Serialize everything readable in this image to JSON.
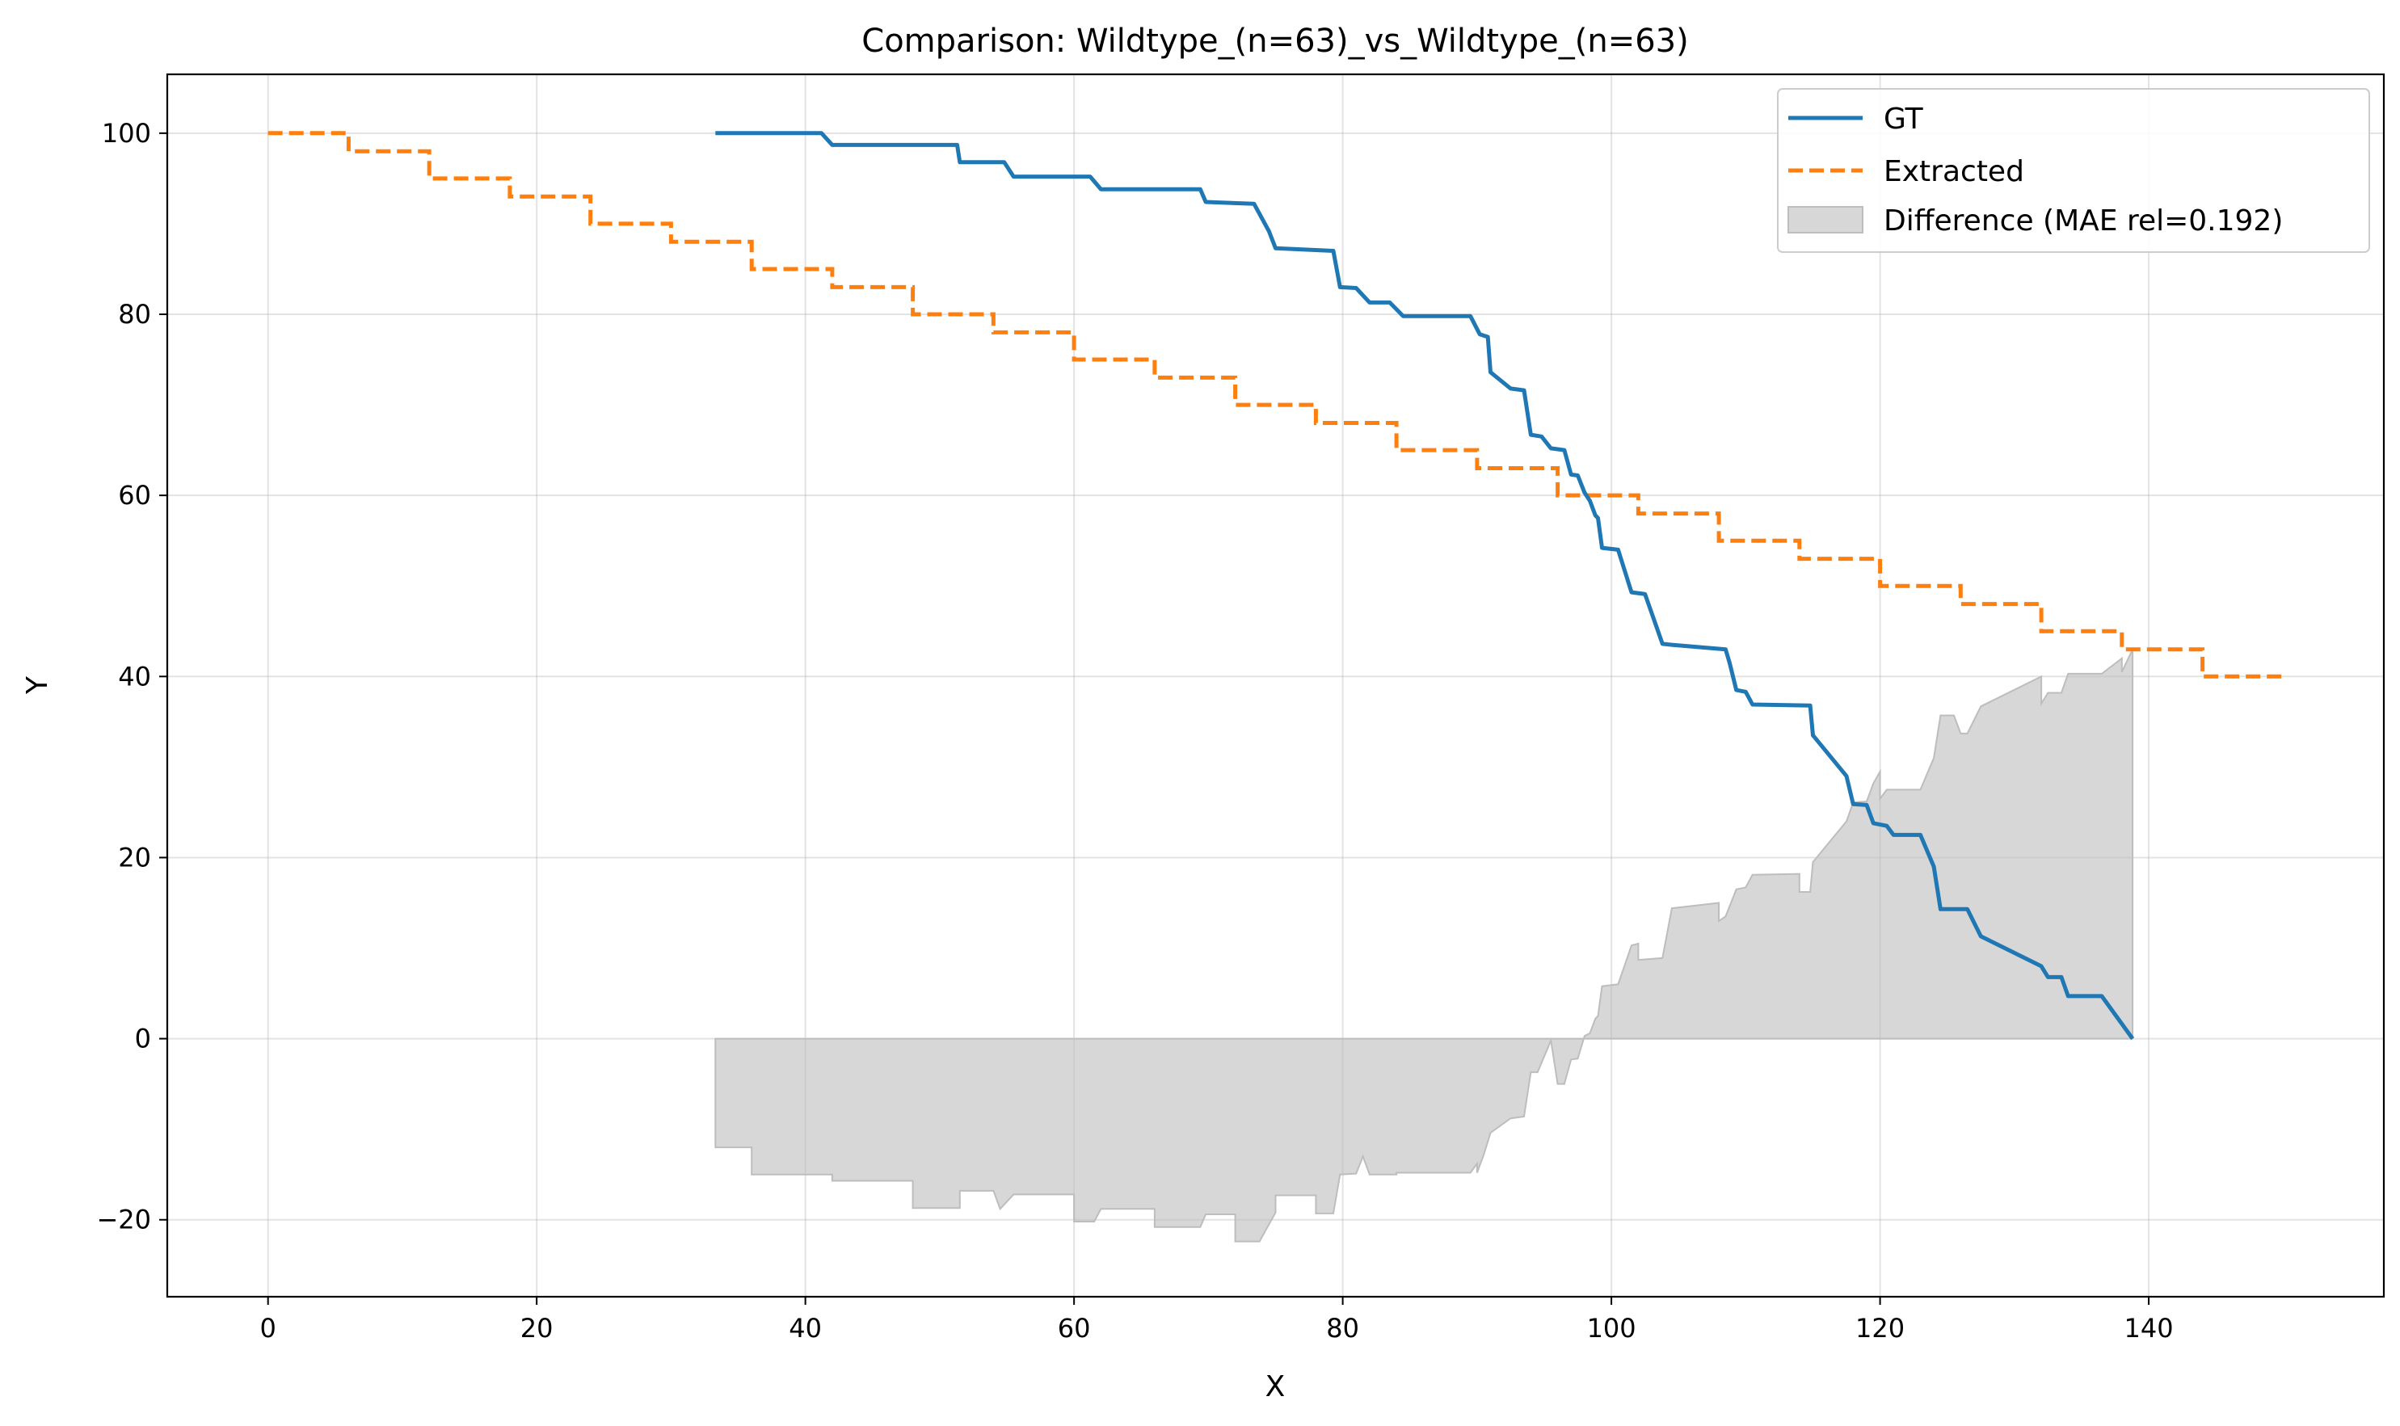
{
  "chart_data": {
    "type": "line",
    "title": "Comparison: Wildtype_(n=63)_vs_Wildtype_(n=63)",
    "xlabel": "X",
    "ylabel": "Y",
    "xlim": [
      -7.5,
      157.5
    ],
    "ylim": [
      -28.5,
      106.5
    ],
    "xticks": [
      0,
      20,
      40,
      60,
      80,
      100,
      120,
      140
    ],
    "yticks": [
      -20,
      0,
      20,
      40,
      60,
      80,
      100
    ],
    "xtick_labels": [
      "0",
      "20",
      "40",
      "60",
      "80",
      "100",
      "120",
      "140"
    ],
    "ytick_labels": [
      "−20",
      "0",
      "20",
      "40",
      "60",
      "80",
      "100"
    ],
    "grid": true,
    "legend_position": "top-right",
    "colors": {
      "gt": "#1f77b4",
      "extracted": "#ff7f0e",
      "difference": "#bdbdbd"
    },
    "series": [
      {
        "name": "GT",
        "style": "solid",
        "x": [
          33.3,
          41.2,
          42.0,
          51.3,
          51.5,
          54.8,
          55.5,
          61.2,
          62.0,
          69.4,
          69.8,
          73.4,
          74.5,
          75.0,
          79.3,
          79.8,
          81.0,
          82.0,
          83.5,
          84.5,
          89.5,
          90.2,
          90.8,
          91.0,
          92.5,
          93.5,
          94.0,
          94.8,
          95.5,
          96.5,
          97.0,
          97.5,
          98.0,
          98.4,
          98.8,
          99.0,
          99.3,
          100.5,
          101.5,
          102.5,
          103.8,
          104.5,
          108.5,
          108.8,
          109.3,
          110.0,
          110.5,
          114.8,
          115.0,
          117.5,
          118.0,
          119.0,
          119.5,
          120.5,
          121.0,
          123.0,
          124.0,
          124.5,
          126.5,
          127.5,
          132.0,
          132.5,
          133.5,
          134.0,
          136.5,
          138.8
        ],
        "y": [
          100.0,
          100.0,
          98.7,
          98.7,
          96.8,
          96.8,
          95.2,
          95.2,
          93.8,
          93.8,
          92.4,
          92.2,
          89.2,
          87.3,
          87.0,
          83.0,
          82.9,
          81.3,
          81.3,
          79.8,
          79.8,
          77.8,
          77.5,
          73.6,
          71.8,
          71.6,
          66.7,
          66.5,
          65.2,
          65.0,
          62.3,
          62.2,
          60.3,
          59.4,
          57.8,
          57.5,
          54.2,
          54.0,
          49.3,
          49.1,
          43.6,
          43.5,
          43.0,
          41.5,
          38.5,
          38.3,
          36.9,
          36.8,
          33.5,
          29.0,
          25.9,
          25.8,
          23.8,
          23.5,
          22.5,
          22.5,
          19.0,
          14.3,
          14.3,
          11.3,
          8.0,
          6.8,
          6.8,
          4.7,
          4.7,
          0.0
        ]
      },
      {
        "name": "Extracted",
        "style": "dashed",
        "x": [
          0,
          6,
          6,
          12,
          12,
          18,
          18,
          24,
          24,
          30,
          30,
          36,
          36,
          42,
          42,
          48,
          48,
          54,
          54,
          60,
          60,
          66,
          66,
          72,
          72,
          78,
          78,
          84,
          84,
          90,
          90,
          96,
          96,
          102,
          102,
          108,
          108,
          114,
          114,
          120,
          120,
          126,
          126,
          132,
          132,
          138,
          138,
          144,
          144,
          150
        ],
        "y": [
          100,
          100,
          98,
          98,
          95,
          95,
          93,
          93,
          90,
          90,
          88,
          88,
          85,
          85,
          83,
          83,
          80,
          80,
          78,
          78,
          75,
          75,
          73,
          73,
          70,
          70,
          68,
          68,
          65,
          65,
          63,
          63,
          60,
          60,
          58,
          58,
          55,
          55,
          53,
          53,
          50,
          50,
          48,
          48,
          45,
          45,
          43,
          43,
          40,
          40
        ]
      },
      {
        "name": "Difference (MAE rel=0.192)",
        "style": "fill",
        "x": [
          33.3,
          36.0,
          36.0,
          42.0,
          42.0,
          48.0,
          48.0,
          51.5,
          51.5,
          54.0,
          54.5,
          55.5,
          60.0,
          60.0,
          61.5,
          62.0,
          66.0,
          66.0,
          69.4,
          69.8,
          72.0,
          72.0,
          73.8,
          75.0,
          75.0,
          78.0,
          78.0,
          79.3,
          79.8,
          81.0,
          81.5,
          82.0,
          84.0,
          84.0,
          89.5,
          90.0,
          90.0,
          90.5,
          91.0,
          92.5,
          93.5,
          94.0,
          94.5,
          95.5,
          96.0,
          96.5,
          97.0,
          97.5,
          98.0,
          98.4,
          98.8,
          99.0,
          99.3,
          100.5,
          101.5,
          102.0,
          102.0,
          103.8,
          104.5,
          108.0,
          108.0,
          108.5,
          109.3,
          110.0,
          110.5,
          114.0,
          114.0,
          114.8,
          115.0,
          117.5,
          118.0,
          119.0,
          119.5,
          120.0,
          120.0,
          120.5,
          123.0,
          124.0,
          124.5,
          125.5,
          126.0,
          126.5,
          127.5,
          132.0,
          132.0,
          132.5,
          133.5,
          134.0,
          136.5,
          138.0,
          138.0,
          138.8
        ],
        "y": [
          -12.0,
          -12.0,
          -15.0,
          -15.0,
          -15.7,
          -15.7,
          -18.7,
          -18.7,
          -16.8,
          -16.8,
          -18.8,
          -17.2,
          -17.2,
          -20.2,
          -20.2,
          -18.8,
          -18.8,
          -20.8,
          -20.8,
          -19.4,
          -19.4,
          -22.4,
          -22.4,
          -19.2,
          -17.3,
          -17.3,
          -19.3,
          -19.3,
          -15.0,
          -14.9,
          -13.0,
          -15.0,
          -15.0,
          -14.8,
          -14.8,
          -13.8,
          -14.8,
          -12.8,
          -10.4,
          -8.8,
          -8.6,
          -3.7,
          -3.7,
          -0.2,
          -5.0,
          -5.0,
          -2.3,
          -2.2,
          0.3,
          0.6,
          2.2,
          2.5,
          5.8,
          6.0,
          10.3,
          10.5,
          8.7,
          8.9,
          14.4,
          15.0,
          13.0,
          13.5,
          16.5,
          16.7,
          18.1,
          18.2,
          16.2,
          16.2,
          19.5,
          24.0,
          26.1,
          26.2,
          28.2,
          29.5,
          26.5,
          27.5,
          27.5,
          31.0,
          35.7,
          35.7,
          33.7,
          33.7,
          36.7,
          40.0,
          37.0,
          38.2,
          38.2,
          40.3,
          40.3,
          42.0,
          40.5,
          43.0
        ]
      }
    ]
  }
}
